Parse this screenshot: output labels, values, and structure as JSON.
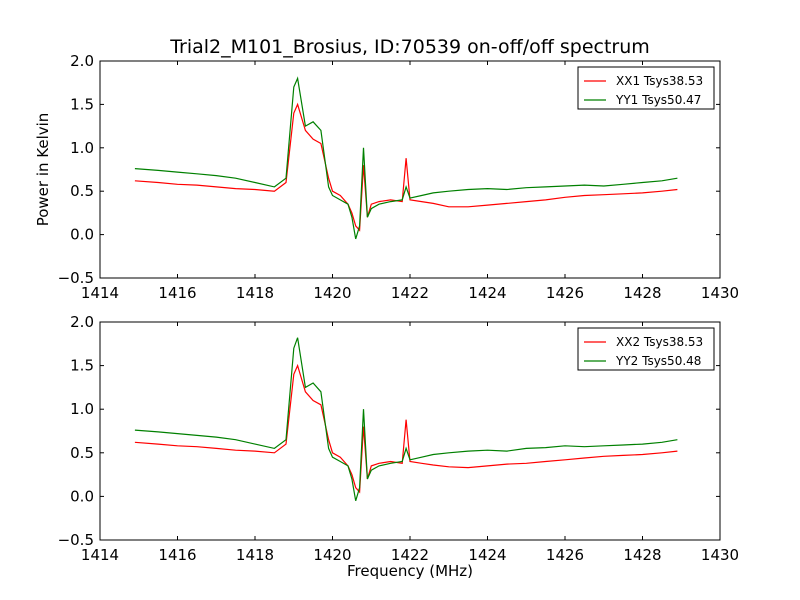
{
  "title": "Trial2_M101_Brosius, ID:70539 on-off/off spectrum",
  "chart_data": [
    {
      "type": "line",
      "title": "Trial2_M101_Brosius, ID:70539 on-off/off spectrum",
      "xlabel": "",
      "ylabel": "Power in Kelvin",
      "xlim": [
        1414,
        1430
      ],
      "ylim": [
        -0.5,
        2.0
      ],
      "xticks": [
        "1414",
        "1416",
        "1418",
        "1420",
        "1422",
        "1424",
        "1426",
        "1428",
        "1430"
      ],
      "yticks": [
        "−0.5",
        "0.0",
        "0.5",
        "1.0",
        "1.5",
        "2.0"
      ],
      "legend_position": "top-right",
      "grid": false,
      "series": [
        {
          "name": "XX1 Tsys38.53",
          "color": "#ff0000",
          "x": [
            1414.9,
            1415.5,
            1416.0,
            1416.5,
            1417.0,
            1417.5,
            1418.0,
            1418.5,
            1418.8,
            1419.0,
            1419.1,
            1419.3,
            1419.5,
            1419.7,
            1419.9,
            1420.0,
            1420.2,
            1420.4,
            1420.5,
            1420.6,
            1420.7,
            1420.8,
            1420.9,
            1421.0,
            1421.2,
            1421.5,
            1421.8,
            1421.9,
            1422.0,
            1422.3,
            1422.6,
            1423.0,
            1423.5,
            1424.0,
            1424.5,
            1425.0,
            1425.5,
            1426.0,
            1426.5,
            1427.0,
            1427.5,
            1428.0,
            1428.5,
            1428.9
          ],
          "y": [
            0.62,
            0.6,
            0.58,
            0.57,
            0.55,
            0.53,
            0.52,
            0.5,
            0.6,
            1.4,
            1.5,
            1.2,
            1.1,
            1.05,
            0.65,
            0.5,
            0.45,
            0.35,
            0.25,
            0.1,
            0.05,
            0.8,
            0.2,
            0.35,
            0.38,
            0.4,
            0.38,
            0.88,
            0.4,
            0.38,
            0.36,
            0.32,
            0.32,
            0.34,
            0.36,
            0.38,
            0.4,
            0.43,
            0.45,
            0.46,
            0.47,
            0.48,
            0.5,
            0.52
          ]
        },
        {
          "name": "YY1 Tsys50.47",
          "color": "#008000",
          "x": [
            1414.9,
            1415.5,
            1416.0,
            1416.5,
            1417.0,
            1417.5,
            1418.0,
            1418.5,
            1418.8,
            1419.0,
            1419.1,
            1419.3,
            1419.5,
            1419.7,
            1419.9,
            1420.0,
            1420.2,
            1420.4,
            1420.5,
            1420.6,
            1420.7,
            1420.8,
            1420.9,
            1421.0,
            1421.2,
            1421.5,
            1421.8,
            1421.9,
            1422.0,
            1422.3,
            1422.6,
            1423.0,
            1423.5,
            1424.0,
            1424.5,
            1425.0,
            1425.5,
            1426.0,
            1426.5,
            1427.0,
            1427.5,
            1428.0,
            1428.5,
            1428.9
          ],
          "y": [
            0.76,
            0.74,
            0.72,
            0.7,
            0.68,
            0.65,
            0.6,
            0.55,
            0.65,
            1.7,
            1.8,
            1.25,
            1.3,
            1.2,
            0.55,
            0.45,
            0.4,
            0.35,
            0.2,
            -0.05,
            0.1,
            1.0,
            0.2,
            0.3,
            0.35,
            0.38,
            0.4,
            0.55,
            0.42,
            0.45,
            0.48,
            0.5,
            0.52,
            0.53,
            0.52,
            0.54,
            0.55,
            0.56,
            0.57,
            0.56,
            0.58,
            0.6,
            0.62,
            0.65
          ]
        }
      ]
    },
    {
      "type": "line",
      "title": "",
      "xlabel": "Frequency (MHz)",
      "ylabel": "",
      "xlim": [
        1414,
        1430
      ],
      "ylim": [
        -0.5,
        2.0
      ],
      "xticks": [
        "1414",
        "1416",
        "1418",
        "1420",
        "1422",
        "1424",
        "1426",
        "1428",
        "1430"
      ],
      "yticks": [
        "−0.5",
        "0.0",
        "0.5",
        "1.0",
        "1.5",
        "2.0"
      ],
      "legend_position": "top-right",
      "grid": false,
      "series": [
        {
          "name": "XX2 Tsys38.53",
          "color": "#ff0000",
          "x": [
            1414.9,
            1415.5,
            1416.0,
            1416.5,
            1417.0,
            1417.5,
            1418.0,
            1418.5,
            1418.8,
            1419.0,
            1419.1,
            1419.3,
            1419.5,
            1419.7,
            1419.9,
            1420.0,
            1420.2,
            1420.4,
            1420.5,
            1420.6,
            1420.7,
            1420.8,
            1420.9,
            1421.0,
            1421.2,
            1421.5,
            1421.8,
            1421.9,
            1422.0,
            1422.3,
            1422.6,
            1423.0,
            1423.5,
            1424.0,
            1424.5,
            1425.0,
            1425.5,
            1426.0,
            1426.5,
            1427.0,
            1427.5,
            1428.0,
            1428.5,
            1428.9
          ],
          "y": [
            0.62,
            0.6,
            0.58,
            0.57,
            0.55,
            0.53,
            0.52,
            0.5,
            0.6,
            1.4,
            1.5,
            1.2,
            1.1,
            1.05,
            0.65,
            0.5,
            0.45,
            0.35,
            0.25,
            0.1,
            0.05,
            0.8,
            0.2,
            0.35,
            0.38,
            0.4,
            0.38,
            0.88,
            0.4,
            0.38,
            0.36,
            0.34,
            0.33,
            0.35,
            0.37,
            0.38,
            0.4,
            0.42,
            0.44,
            0.46,
            0.47,
            0.48,
            0.5,
            0.52
          ]
        },
        {
          "name": "YY2 Tsys50.48",
          "color": "#008000",
          "x": [
            1414.9,
            1415.5,
            1416.0,
            1416.5,
            1417.0,
            1417.5,
            1418.0,
            1418.5,
            1418.8,
            1419.0,
            1419.1,
            1419.3,
            1419.5,
            1419.7,
            1419.9,
            1420.0,
            1420.2,
            1420.4,
            1420.5,
            1420.6,
            1420.7,
            1420.8,
            1420.9,
            1421.0,
            1421.2,
            1421.5,
            1421.8,
            1421.9,
            1422.0,
            1422.3,
            1422.6,
            1423.0,
            1423.5,
            1424.0,
            1424.5,
            1425.0,
            1425.5,
            1426.0,
            1426.5,
            1427.0,
            1427.5,
            1428.0,
            1428.5,
            1428.9
          ],
          "y": [
            0.76,
            0.74,
            0.72,
            0.7,
            0.68,
            0.65,
            0.6,
            0.55,
            0.65,
            1.7,
            1.82,
            1.25,
            1.3,
            1.2,
            0.55,
            0.45,
            0.4,
            0.35,
            0.2,
            -0.05,
            0.1,
            1.0,
            0.2,
            0.3,
            0.35,
            0.38,
            0.4,
            0.55,
            0.42,
            0.45,
            0.48,
            0.5,
            0.52,
            0.53,
            0.52,
            0.55,
            0.56,
            0.58,
            0.57,
            0.58,
            0.59,
            0.6,
            0.62,
            0.65
          ]
        }
      ]
    }
  ]
}
